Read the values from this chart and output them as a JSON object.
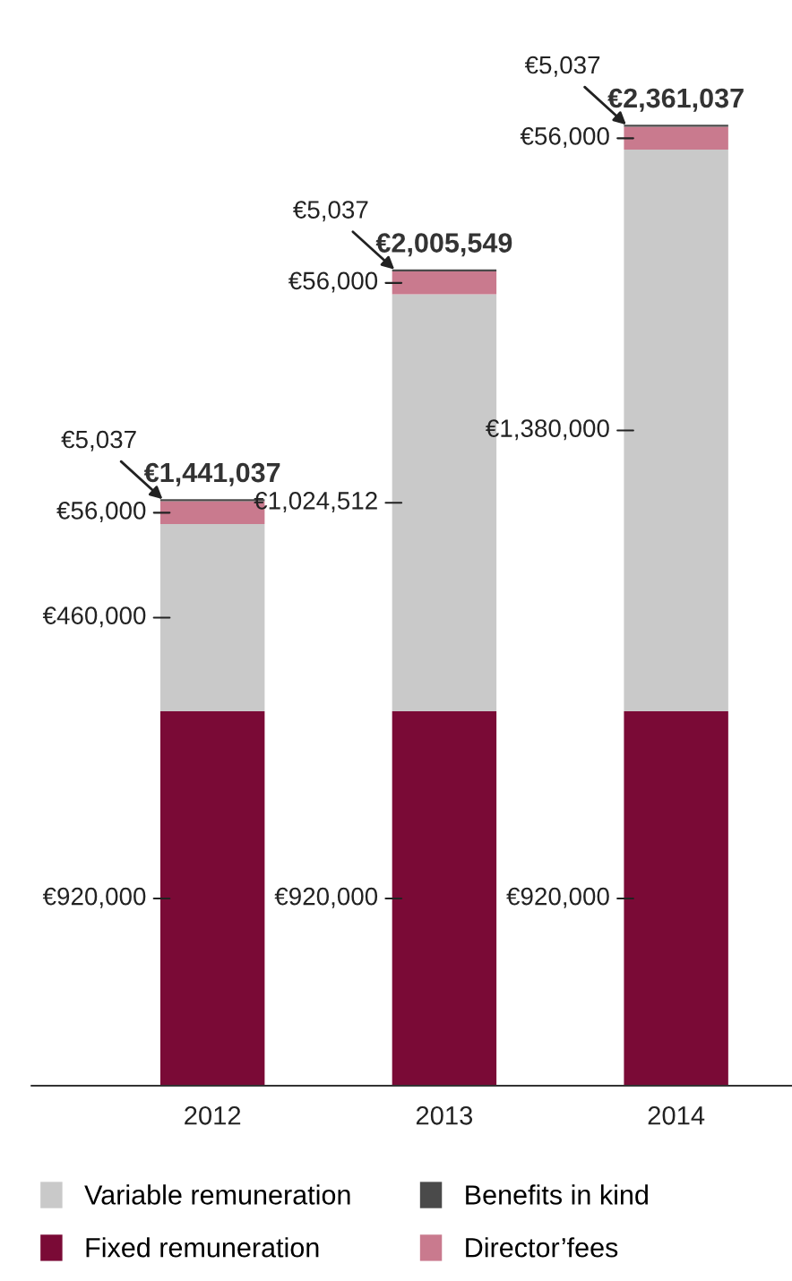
{
  "chart_data": {
    "type": "bar",
    "stacked": true,
    "categories": [
      "2012",
      "2013",
      "2014"
    ],
    "series": [
      {
        "name": "Fixed remuneration",
        "color": "#7a0a36",
        "values": [
          920000,
          920000,
          920000
        ],
        "value_labels": [
          "€920,000",
          "€920,000",
          "€920,000"
        ]
      },
      {
        "name": "Variable remuneration",
        "color": "#c9c9c9",
        "values": [
          460000,
          1024512,
          1380000
        ],
        "value_labels": [
          "€460,000",
          "€1,024,512",
          "€1,380,000"
        ]
      },
      {
        "name": "Director’fees",
        "color": "#c97a8e",
        "values": [
          56000,
          56000,
          56000
        ],
        "value_labels": [
          "€56,000",
          "€56,000",
          "€56,000"
        ]
      },
      {
        "name": "Benefits in kind",
        "color": "#4a4a4a",
        "values": [
          5037,
          5037,
          5037
        ],
        "value_labels": [
          "€5,037",
          "€5,037",
          "€5,037"
        ]
      }
    ],
    "totals": [
      "€1,441,037",
      "€2,005,549",
      "€2,361,037"
    ],
    "legend": "bottom",
    "grid": false
  }
}
